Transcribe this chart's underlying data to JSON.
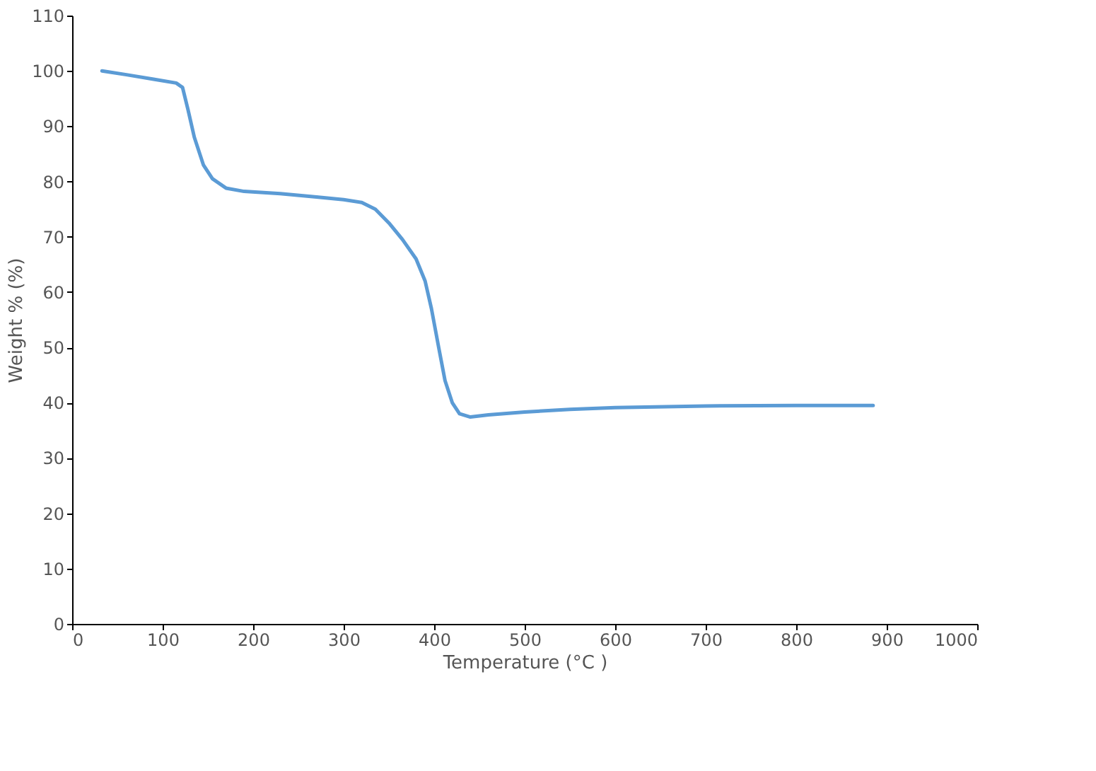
{
  "chart_data": {
    "type": "line",
    "xlabel": "Temperature (°C )",
    "ylabel": "Weight % (%)",
    "x": [
      33,
      60,
      90,
      115,
      122,
      128,
      135,
      145,
      155,
      170,
      190,
      230,
      270,
      300,
      320,
      335,
      350,
      365,
      380,
      390,
      397,
      405,
      412,
      420,
      428,
      440,
      460,
      500,
      550,
      600,
      700,
      800,
      885
    ],
    "series": [
      {
        "color": "#5b9bd5",
        "values": [
          100,
          99.3,
          98.5,
          97.8,
          97,
          93,
          88,
          83,
          80.5,
          78.8,
          78.2,
          77.8,
          77.2,
          76.7,
          76.2,
          75,
          72.5,
          69.5,
          66,
          62,
          57,
          50,
          44,
          40,
          38,
          37.4,
          37.8,
          38.3,
          38.8,
          39.1,
          39.4,
          39.5,
          39.5
        ]
      }
    ],
    "xlim": [
      0,
      1000
    ],
    "xticks": [
      0,
      100,
      200,
      300,
      400,
      500,
      600,
      700,
      800,
      900,
      1000
    ],
    "ylim": [
      0,
      110
    ],
    "yticks": [
      0,
      10,
      20,
      30,
      40,
      50,
      60,
      70,
      80,
      90,
      100,
      110
    ],
    "grid": false,
    "marker": "none",
    "line_style": "solid"
  }
}
